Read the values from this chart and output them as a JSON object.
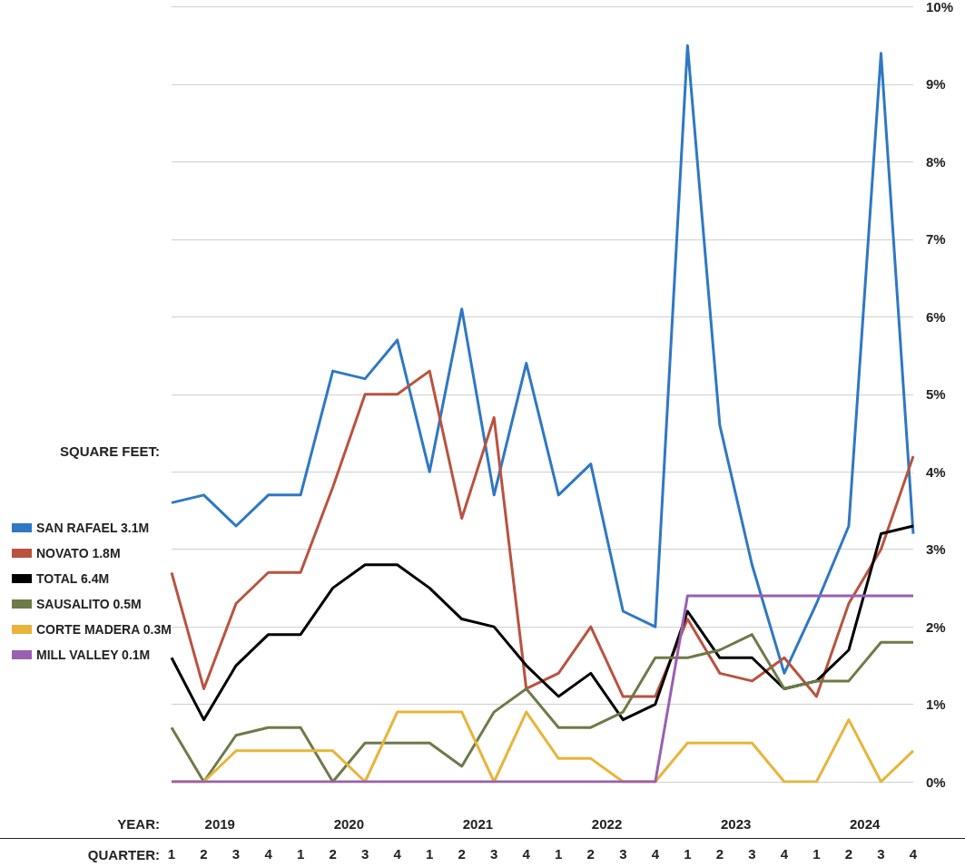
{
  "chart_data": {
    "type": "line",
    "legend_title": "SQUARE FEET:",
    "xlabel": "QUARTER:",
    "annotations": [
      "YEAR:",
      "2019",
      "2020",
      "2021",
      "2022",
      "2023",
      "2024"
    ],
    "categories": [
      "1",
      "2",
      "3",
      "4",
      "1",
      "2",
      "3",
      "4",
      "1",
      "2",
      "3",
      "4",
      "1",
      "2",
      "3",
      "4",
      "1",
      "2",
      "3",
      "4",
      "1",
      "2",
      "3",
      "4"
    ],
    "ylim": [
      0,
      10
    ],
    "yticks": [
      {
        "value": 0,
        "label": "0%"
      },
      {
        "value": 1,
        "label": "1%"
      },
      {
        "value": 2,
        "label": "2%"
      },
      {
        "value": 3,
        "label": "3%"
      },
      {
        "value": 4,
        "label": "4%"
      },
      {
        "value": 5,
        "label": "5%"
      },
      {
        "value": 6,
        "label": "6%"
      },
      {
        "value": 7,
        "label": "7%"
      },
      {
        "value": 8,
        "label": "8%"
      },
      {
        "value": 9,
        "label": "9%"
      },
      {
        "value": 10,
        "label": "10%"
      }
    ],
    "grid": "y",
    "legend": "left",
    "marker": "none",
    "line_style": "solid",
    "series": [
      {
        "name": "SAN RAFAEL 3.1M",
        "color": "#2e78c4",
        "values": [
          3.6,
          3.7,
          3.3,
          3.7,
          3.7,
          5.3,
          5.2,
          5.7,
          4.0,
          6.1,
          3.7,
          5.4,
          3.7,
          4.1,
          2.2,
          2.0,
          9.5,
          4.6,
          2.8,
          1.4,
          2.3,
          3.3,
          9.4,
          3.2
        ]
      },
      {
        "name": "NOVATO 1.8M",
        "color": "#b9533f",
        "values": [
          2.7,
          1.2,
          2.3,
          2.7,
          2.7,
          3.8,
          5.0,
          5.0,
          5.3,
          3.4,
          4.7,
          1.2,
          1.4,
          2.0,
          1.1,
          1.1,
          2.1,
          1.4,
          1.3,
          1.6,
          1.1,
          2.3,
          3.0,
          4.2
        ]
      },
      {
        "name": "TOTAL 6.4M",
        "color": "#000000",
        "values": [
          1.6,
          0.8,
          1.5,
          1.9,
          1.9,
          2.5,
          2.8,
          2.8,
          2.5,
          2.1,
          2.0,
          1.5,
          1.1,
          1.4,
          0.8,
          1.0,
          2.2,
          1.6,
          1.6,
          1.2,
          1.3,
          1.7,
          3.2,
          3.3
        ]
      },
      {
        "name": "SAUSALITO 0.5M",
        "color": "#6e7a48",
        "values": [
          0.7,
          0,
          0.6,
          0.7,
          0.7,
          0,
          0.5,
          0.5,
          0.5,
          0.2,
          0.9,
          1.2,
          0.7,
          0.7,
          0.9,
          1.6,
          1.6,
          1.7,
          1.9,
          1.2,
          1.3,
          1.3,
          1.8,
          1.8
        ]
      },
      {
        "name": "CORTE MADERA 0.3M",
        "color": "#e8b43a",
        "values": [
          0,
          0,
          0.4,
          0.4,
          0.4,
          0.4,
          0,
          0.9,
          0.9,
          0.9,
          0,
          0.9,
          0.3,
          0.3,
          0,
          0,
          0.5,
          0.5,
          0.5,
          0,
          0,
          0.8,
          0,
          0.4
        ]
      },
      {
        "name": "MILL VALLEY 0.1M",
        "color": "#9a5fb0",
        "values": [
          0,
          0,
          0,
          0,
          0,
          0,
          0,
          0,
          0,
          0,
          0,
          0,
          0,
          0,
          0,
          0,
          2.4,
          2.4,
          2.4,
          2.4,
          2.4,
          2.4,
          2.4,
          2.4
        ]
      }
    ]
  }
}
